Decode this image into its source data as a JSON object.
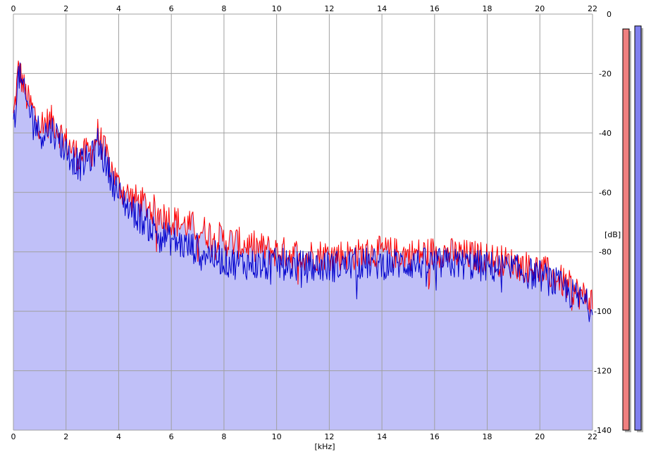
{
  "chart_data": {
    "type": "area",
    "title": "",
    "xlabel": "[kHz]",
    "ylabel": "[dB]",
    "xlim": [
      0,
      22
    ],
    "ylim": [
      -140,
      0
    ],
    "x_ticks": [
      0,
      2,
      4,
      6,
      8,
      10,
      12,
      14,
      16,
      18,
      20,
      22
    ],
    "y_ticks": [
      0,
      -20,
      -40,
      -60,
      -80,
      -100,
      -120,
      -140
    ],
    "x_tick_labels": [
      "0",
      "2",
      "4",
      "6",
      "8",
      "10",
      "12",
      "14",
      "16",
      "18",
      "20",
      "22"
    ],
    "y_tick_labels": [
      "0",
      "-20",
      "-40",
      "-60",
      "-80",
      "-100",
      "-120",
      "-140"
    ],
    "grid": true,
    "series": [
      {
        "color": "#ff0000",
        "x": [
          0,
          0.2,
          0.5,
          1,
          1.5,
          2,
          2.5,
          3,
          3.2,
          3.5,
          4,
          4.5,
          5,
          5.5,
          6,
          6.5,
          7,
          7.5,
          8,
          8.5,
          9,
          9.5,
          10,
          11,
          12,
          13,
          14,
          15,
          16,
          17,
          18,
          19,
          20,
          20.5,
          21,
          21.5,
          22
        ],
        "y": [
          -35,
          -18,
          -28,
          -37,
          -36,
          -43,
          -48,
          -46,
          -40,
          -47,
          -58,
          -62,
          -64,
          -67,
          -69,
          -71,
          -72,
          -74,
          -76,
          -77,
          -78,
          -79,
          -80,
          -81,
          -81,
          -81,
          -80,
          -81,
          -80,
          -81,
          -82,
          -84,
          -86,
          -88,
          -91,
          -94,
          -97
        ]
      },
      {
        "color": "#0000cc",
        "x": [
          0,
          0.2,
          0.5,
          1,
          1.5,
          2,
          2.5,
          3,
          3.2,
          3.5,
          4,
          4.5,
          5,
          5.5,
          6,
          6.5,
          7,
          7.5,
          8,
          8.5,
          9,
          9.5,
          10,
          11,
          12,
          13,
          14,
          15,
          16,
          17,
          18,
          19,
          20,
          20.5,
          21,
          21.5,
          22
        ],
        "y": [
          -38,
          -20,
          -30,
          -40,
          -39,
          -46,
          -51,
          -48,
          -43,
          -50,
          -61,
          -66,
          -70,
          -74,
          -76,
          -78,
          -79,
          -81,
          -83,
          -84,
          -84,
          -85,
          -84,
          -85,
          -85,
          -84,
          -84,
          -84,
          -84,
          -84,
          -85,
          -86,
          -88,
          -90,
          -93,
          -96,
          -99
        ]
      }
    ],
    "fill_color": "#c0c0f8",
    "grid_color": "#a0a0a0",
    "level_meters": [
      {
        "color": "#f08080",
        "value": -5
      },
      {
        "color": "#8080f0",
        "value": -4
      }
    ]
  }
}
